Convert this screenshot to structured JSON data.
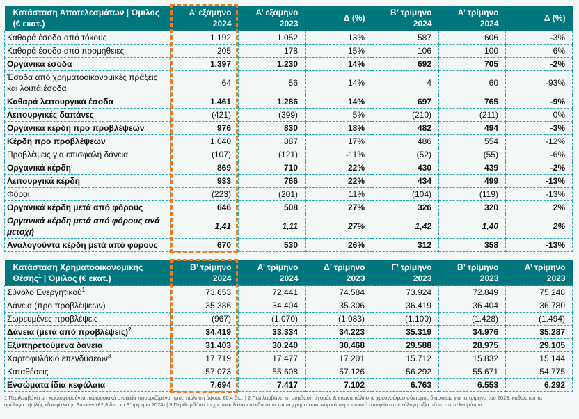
{
  "income_statement": {
    "headers": [
      "Κατάσταση Αποτελεσμάτων | Όμιλος (€ εκατ.)",
      "Α’ εξάμηνο 2024",
      "Α’ εξάμηνο 2023",
      "Δ (%)",
      "Β’ τρίμηνο 2024",
      "Α’ τρίμηνο 2024",
      "Δ (%)"
    ],
    "highlighted_column": "Α’ εξάμηνο 2024",
    "rows": [
      {
        "label": "Καθαρά έσοδα από τόκους",
        "values": [
          "1.192",
          "1.052",
          "13%",
          "587",
          "606",
          "-3%"
        ],
        "style": "normal"
      },
      {
        "label": "Καθαρά έσοδα από προμήθειες",
        "values": [
          "205",
          "178",
          "15%",
          "106",
          "100",
          "6%"
        ],
        "style": "normal"
      },
      {
        "label": "Οργανικά έσοδα",
        "values": [
          "1.397",
          "1.230",
          "14%",
          "692",
          "705",
          "-2%"
        ],
        "style": "bold"
      },
      {
        "label": "Έσοδα από χρηματοοικονομικές πράξεις και λοιπά έσοδα",
        "values": [
          "64",
          "56",
          "14%",
          "4",
          "60",
          "-93%"
        ],
        "style": "tall"
      },
      {
        "label": "Καθαρά λειτουργικά έσοδα",
        "values": [
          "1.461",
          "1.286",
          "14%",
          "697",
          "765",
          "-9%"
        ],
        "style": "bold"
      },
      {
        "label": "Λειτουργικές δαπάνες",
        "values": [
          "(421)",
          "(399)",
          "5%",
          "(210)",
          "(211)",
          "0%"
        ],
        "style": "bold-label"
      },
      {
        "label": "Οργανικά κέρδη προ προβλέψεων",
        "values": [
          "976",
          "830",
          "18%",
          "482",
          "494",
          "-3%"
        ],
        "style": "bold"
      },
      {
        "label": "Κέρδη προ προβλέψεων",
        "values": [
          "1,040",
          "887",
          "17%",
          "486",
          "554",
          "-12%"
        ],
        "style": "bold-label"
      },
      {
        "label": "Προβλέψεις για επισφαλή δάνεια",
        "values": [
          "(107)",
          "(121)",
          "-11%",
          "(52)",
          "(55)",
          "-6%"
        ],
        "style": "normal"
      },
      {
        "label": "Οργανικά κέρδη",
        "values": [
          "869",
          "710",
          "22%",
          "430",
          "439",
          "-2%"
        ],
        "style": "bold"
      },
      {
        "label": "Λειτουργικά κέρδη",
        "values": [
          "933",
          "766",
          "22%",
          "434",
          "499",
          "-13%"
        ],
        "style": "bold"
      },
      {
        "label": "Φόροι",
        "values": [
          "(223)",
          "(201)",
          "11%",
          "(104)",
          "(119)",
          "-13%"
        ],
        "style": "normal"
      },
      {
        "label": "Οργανικά κέρδη μετά από φόρους",
        "values": [
          "646",
          "508",
          "27%",
          "326",
          "320",
          "2%"
        ],
        "style": "bold"
      },
      {
        "label": "Οργανικά κέρδη μετά από φόρους ανά μετοχή",
        "values": [
          "1,41",
          "1,11",
          "27%",
          "1,42",
          "1,40",
          "2%"
        ],
        "style": "bold-italic-tall"
      },
      {
        "label": "Αναλογούντα κέρδη μετά από φόρους",
        "values": [
          "670",
          "530",
          "26%",
          "312",
          "358",
          "-13%"
        ],
        "style": "bold"
      }
    ]
  },
  "balance_sheet": {
    "headers": [
      "Κατάσταση Χρηματοοικονομικής Θέσης",
      "Β’ τρίμηνο 2024",
      "Α’ τρίμηνο 2024",
      "Δ’ τρίμηνο 2023",
      "Γ’ τρίμηνο 2023",
      "Β’ τρίμηνο 2023",
      "Α’ τρίμηνο 2023"
    ],
    "header_sup": "1",
    "header_suffix": " | Όμιλος (€ εκατ.)",
    "highlighted_column": "Β’ τρίμηνο 2024",
    "rows": [
      {
        "label": "Σύνολο Ενεργητικού",
        "sup": "1",
        "values": [
          "73.653",
          "72.441",
          "74.584",
          "73.924",
          "72.849",
          "75.248"
        ],
        "style": "normal"
      },
      {
        "label": "Δάνεια (προ προβλέψεων)",
        "sup": "",
        "values": [
          "35.386",
          "34.404",
          "35.306",
          "36.419",
          "36.404",
          "36,780"
        ],
        "style": "normal"
      },
      {
        "label": "Σωρευμένες προβλέψεις",
        "sup": "",
        "values": [
          "(967)",
          "(1.070)",
          "(1.083)",
          "(1.100)",
          "(1.428)",
          "(1.494)"
        ],
        "style": "normal"
      },
      {
        "label": "Δάνεια (μετά από προβλέψεις)",
        "sup": "2",
        "values": [
          "34.419",
          "33.334",
          "34.223",
          "35.319",
          "34.976",
          "35.287"
        ],
        "style": "bold"
      },
      {
        "label": "Εξυπηρετούμενα δάνεια",
        "sup": "",
        "values": [
          "31.403",
          "30.240",
          "30.468",
          "29.588",
          "28.975",
          "29.105"
        ],
        "style": "bold"
      },
      {
        "label": "Χαρτοφυλάκιο επενδύσεων",
        "sup": "3",
        "values": [
          "17.719",
          "17.477",
          "17.201",
          "15.712",
          "15.832",
          "15.144"
        ],
        "style": "normal"
      },
      {
        "label": "Καταθέσεις",
        "sup": "",
        "values": [
          "57.073",
          "55.608",
          "57.126",
          "56.292",
          "55.671",
          "54.775"
        ],
        "style": "normal"
      },
      {
        "label": "Ενσώματα ίδια κεφάλαια",
        "sup": "",
        "values": [
          "7.694",
          "7.417",
          "7.102",
          "6.763",
          "6.553",
          "6.292"
        ],
        "style": "bold"
      }
    ]
  },
  "footnotes": [
    "1 Περιλαμβάνει μη κυκλοφορούντα περιουσιακά στοιχεία προοριζόμενα προς πώληση ύψους €0,4 δισ. | 2 Περιλαμβάνει τη σύμβαση αγοράς & επαναπώλησης χρεογράφου σύντομης διάρκειας για τα τρίμηνα του 2023, καθώς και τα",
    "ομόλογα υψηλής εξασφάλισης Frontier (€2,8 δισ. το Β’ τρίμηνο 2024) | 3 Περιλαμβάνει το χαρτοφυλάκιο επενδύσεων και τα χρηματοοικονομικά περιουσιακά στοιχεία στην εύλογη αξία μέσω αποτελεσμάτων"
  ],
  "colors": {
    "header_bg": "#00777f",
    "grid": "#1aa6b7",
    "highlight": "#f07a22",
    "background": "#f3f7f5"
  }
}
